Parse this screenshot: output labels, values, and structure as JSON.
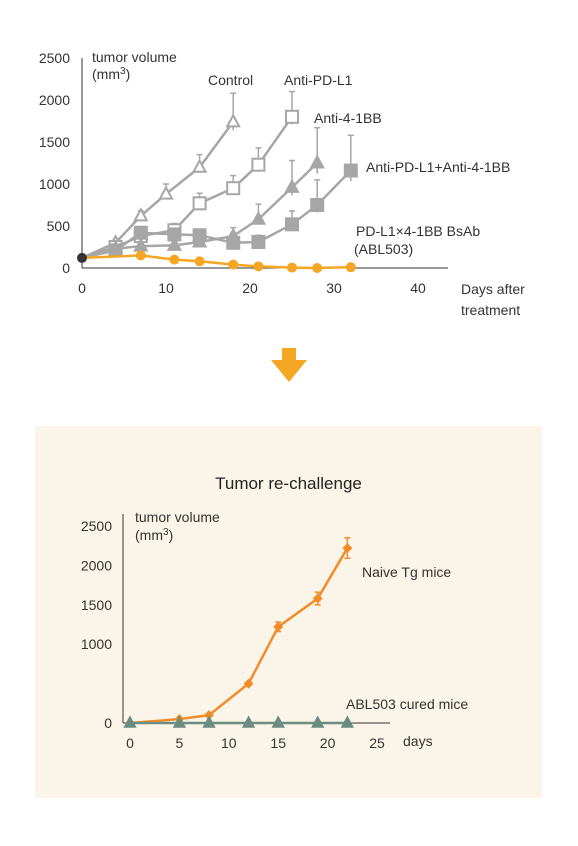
{
  "colors": {
    "gray": "#a6a6a6",
    "axis": "#333333",
    "orange": "#f5a623",
    "orange_dark": "#f28c28",
    "teal": "#6b8c80",
    "panel_bg": "#fbf5e9",
    "arrow": "#f5a623"
  },
  "chart_data": [
    {
      "type": "line",
      "ylabel_line1": "tumor volume",
      "ylabel_line2": "(mm",
      "ylabel_sup": "3",
      "ylabel_end": ")",
      "xlabel_line1": "Days after",
      "xlabel_line2": "treatment",
      "xlim": [
        0,
        40
      ],
      "ylim": [
        0,
        2500
      ],
      "xticks": [
        0,
        10,
        20,
        30,
        40
      ],
      "yticks": [
        0,
        500,
        1000,
        1500,
        2000,
        2500
      ],
      "baseline_point": [
        0,
        120
      ],
      "series": [
        {
          "name": "Control",
          "marker": "triangle-open",
          "x": [
            0,
            4,
            7,
            10,
            14,
            18
          ],
          "y": [
            120,
            300,
            620,
            880,
            1200,
            1740
          ],
          "err": [
            0,
            40,
            60,
            120,
            150,
            340
          ]
        },
        {
          "name": "Anti-PD-L1",
          "marker": "square-open",
          "x": [
            0,
            4,
            7,
            11,
            14,
            18,
            21,
            25
          ],
          "y": [
            120,
            250,
            380,
            450,
            770,
            950,
            1230,
            1800
          ],
          "err": [
            0,
            40,
            60,
            80,
            120,
            150,
            200,
            300
          ]
        },
        {
          "name": "Anti-4-1BB",
          "marker": "triangle-filled",
          "x": [
            0,
            4,
            7,
            11,
            14,
            18,
            21,
            25,
            28
          ],
          "y": [
            120,
            230,
            260,
            270,
            310,
            380,
            580,
            960,
            1250
          ],
          "err": [
            0,
            30,
            40,
            50,
            60,
            100,
            180,
            320,
            420
          ]
        },
        {
          "name": "Anti-PD-L1+Anti-4-1BB",
          "marker": "square-filled",
          "x": [
            0,
            4,
            7,
            11,
            14,
            18,
            21,
            25,
            28,
            32
          ],
          "y": [
            120,
            210,
            420,
            400,
            390,
            300,
            310,
            520,
            750,
            1160
          ],
          "err": [
            0,
            30,
            60,
            60,
            70,
            60,
            80,
            160,
            300,
            420
          ]
        },
        {
          "name": "PD-L1×4-1BB BsAb (ABL503)",
          "name_line1": "PD-L1×4-1BB BsAb",
          "name_line2": "(ABL503)",
          "marker": "circle-filled",
          "x": [
            0,
            7,
            11,
            14,
            18,
            21,
            25,
            28,
            32
          ],
          "y": [
            120,
            150,
            100,
            80,
            40,
            20,
            5,
            0,
            10
          ],
          "err": [
            0,
            0,
            0,
            0,
            0,
            0,
            0,
            0,
            0
          ]
        }
      ]
    },
    {
      "type": "line",
      "title": "Tumor re-challenge",
      "ylabel_line1": "tumor volume",
      "ylabel_line2": "(mm",
      "ylabel_sup": "3",
      "ylabel_end": ")",
      "xlabel": "days",
      "xlim": [
        0,
        25
      ],
      "ylim": [
        0,
        2500
      ],
      "xticks": [
        0,
        5,
        10,
        15,
        20,
        25
      ],
      "yticks": [
        0,
        1000,
        1500,
        2000,
        2500
      ],
      "series": [
        {
          "name": "Naive Tg mice",
          "marker": "diamond",
          "x": [
            0,
            5,
            8,
            12,
            15,
            19,
            22
          ],
          "y": [
            0,
            50,
            100,
            500,
            1220,
            1580,
            2220
          ],
          "err": [
            0,
            0,
            0,
            0,
            60,
            80,
            130
          ]
        },
        {
          "name": "ABL503 cured mice",
          "marker": "triangle-filled",
          "x": [
            0,
            5,
            8,
            12,
            15,
            19,
            22
          ],
          "y": [
            0,
            0,
            0,
            0,
            0,
            0,
            0
          ],
          "err": [
            0,
            0,
            0,
            0,
            0,
            0,
            0
          ]
        }
      ]
    }
  ]
}
